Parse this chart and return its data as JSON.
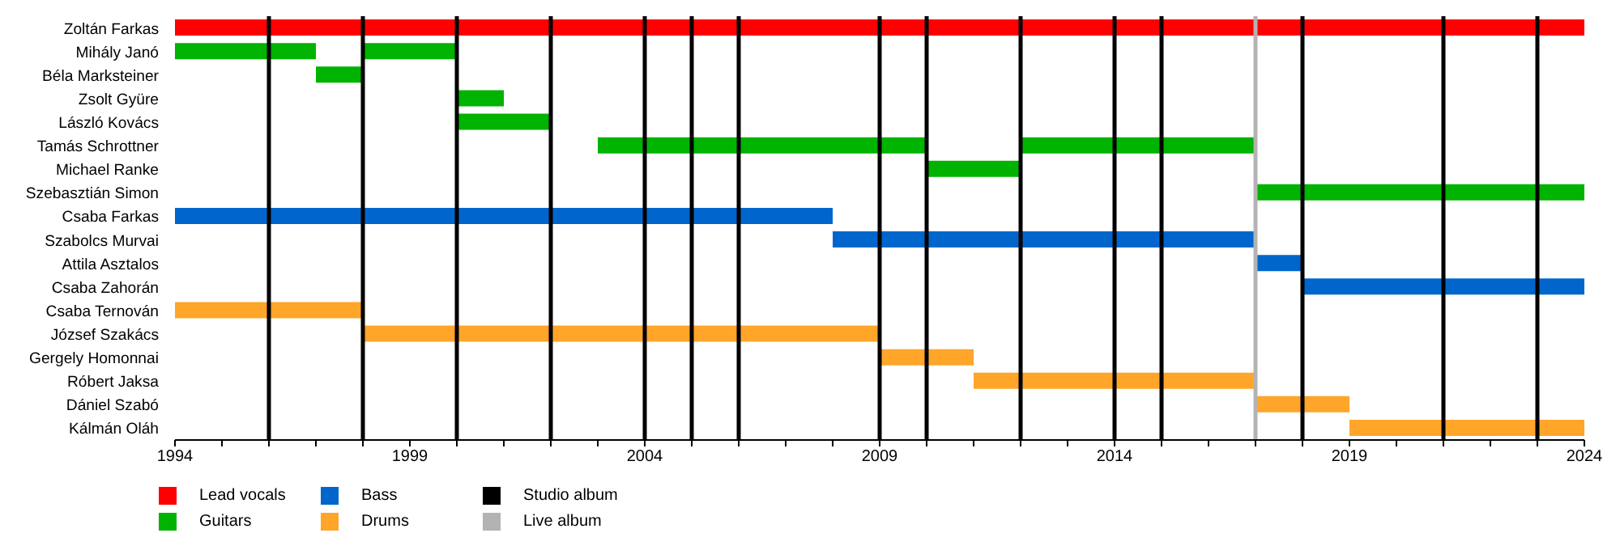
{
  "chart_data": {
    "type": "bar",
    "orientation": "horizontal",
    "categories": [
      "Zoltán Farkas",
      "Mihály Janó",
      "Béla Marksteiner",
      "Zsolt Gyüre",
      "László Kovács",
      "Tamás Schrottner",
      "Michael Ranke",
      "Szebasztián Simon",
      "Csaba Farkas",
      "Szabolcs Murvai",
      "Attila Asztalos",
      "Csaba Zahorán",
      "Csaba Ternován",
      "József Szakács",
      "Gergely Homonnai",
      "Róbert Jaksa",
      "Dániel Szabó",
      "Kálmán Oláh"
    ],
    "series": [
      {
        "name": "Lead vocals",
        "color": "#ff0000",
        "base": [
          1994,
          null,
          null,
          null,
          null,
          null,
          null,
          null,
          null,
          null,
          null,
          null,
          null,
          null,
          null,
          null,
          null,
          null
        ],
        "values": [
          30,
          null,
          null,
          null,
          null,
          null,
          null,
          null,
          null,
          null,
          null,
          null,
          null,
          null,
          null,
          null,
          null,
          null
        ]
      },
      {
        "name": "Guitars",
        "color": "#00b300",
        "base": [
          null,
          1994,
          1997,
          2000,
          2000,
          2003,
          2010,
          2017,
          null,
          null,
          null,
          null,
          null,
          null,
          null,
          null,
          null,
          null
        ],
        "values": [
          null,
          3,
          1,
          1,
          2,
          7,
          2,
          7,
          null,
          null,
          null,
          null,
          null,
          null,
          null,
          null,
          null,
          null
        ]
      },
      {
        "color": "#00b300",
        "base": [
          null,
          1998,
          null,
          null,
          null,
          2012,
          null,
          null,
          null,
          null,
          null,
          null,
          null,
          null,
          null,
          null,
          null,
          null
        ],
        "values": [
          null,
          2,
          null,
          null,
          null,
          5,
          null,
          null,
          null,
          null,
          null,
          null,
          null,
          null,
          null,
          null,
          null,
          null
        ]
      },
      {
        "name": "Bass",
        "color": "#0066cc",
        "base": [
          null,
          null,
          null,
          null,
          null,
          null,
          null,
          null,
          1994,
          2008,
          2017,
          2018,
          null,
          null,
          null,
          null,
          null,
          null
        ],
        "values": [
          null,
          null,
          null,
          null,
          null,
          null,
          null,
          null,
          14,
          9,
          1,
          6,
          null,
          null,
          null,
          null,
          null,
          null
        ]
      },
      {
        "name": "Drums",
        "color": "#ffa52a",
        "base": [
          null,
          null,
          null,
          null,
          null,
          null,
          null,
          null,
          null,
          null,
          null,
          null,
          1994,
          1998,
          2009,
          2011,
          2017,
          2019
        ],
        "values": [
          null,
          null,
          null,
          null,
          null,
          null,
          null,
          null,
          null,
          null,
          null,
          null,
          4,
          11,
          2,
          6,
          2,
          5
        ]
      }
    ],
    "xlim": [
      1994,
      2024
    ],
    "xticks": [
      1994,
      {
        "value": 1995,
        "label": null
      },
      {
        "value": 1996,
        "label": null
      },
      {
        "value": 1997,
        "label": null
      },
      {
        "value": 1998,
        "label": null
      },
      1999,
      {
        "value": 2000,
        "label": null
      },
      {
        "value": 2001,
        "label": null
      },
      {
        "value": 2002,
        "label": null
      },
      {
        "value": 2003,
        "label": null
      },
      2004,
      {
        "value": 2005,
        "label": null
      },
      {
        "value": 2006,
        "label": null
      },
      {
        "value": 2007,
        "label": null
      },
      {
        "value": 2008,
        "label": null
      },
      2009,
      {
        "value": 2010,
        "label": null
      },
      {
        "value": 2011,
        "label": null
      },
      {
        "value": 2012,
        "label": null
      },
      {
        "value": 2013,
        "label": null
      },
      2014,
      {
        "value": 2015,
        "label": null
      },
      {
        "value": 2016,
        "label": null
      },
      {
        "value": 2017,
        "label": null
      },
      {
        "value": 2018,
        "label": null
      },
      2019,
      {
        "value": 2020,
        "label": null
      },
      {
        "value": 2021,
        "label": null
      },
      {
        "value": 2022,
        "label": null
      },
      {
        "value": 2023,
        "label": null
      },
      2024
    ],
    "ref_lines": [
      {
        "axis": "x",
        "value": 1996,
        "label": "Studio album",
        "color": "#000000"
      },
      {
        "axis": "x",
        "value": 1998,
        "color": "#000000"
      },
      {
        "axis": "x",
        "value": 2000,
        "color": "#000000"
      },
      {
        "axis": "x",
        "value": 2002,
        "color": "#000000"
      },
      {
        "axis": "x",
        "value": 2004,
        "color": "#000000"
      },
      {
        "axis": "x",
        "value": 2005,
        "color": "#000000"
      },
      {
        "axis": "x",
        "value": 2006,
        "color": "#000000"
      },
      {
        "axis": "x",
        "value": 2009,
        "color": "#000000"
      },
      {
        "axis": "x",
        "value": 2010,
        "color": "#000000"
      },
      {
        "axis": "x",
        "value": 2012,
        "color": "#000000"
      },
      {
        "axis": "x",
        "value": 2014,
        "color": "#000000"
      },
      {
        "axis": "x",
        "value": 2015,
        "color": "#000000"
      },
      {
        "axis": "x",
        "value": 2017,
        "label": "Live album",
        "color": "#b3b3b3"
      },
      {
        "axis": "x",
        "value": 2018,
        "color": "#000000"
      },
      {
        "axis": "x",
        "value": 2021,
        "color": "#000000"
      },
      {
        "axis": "x",
        "value": 2023,
        "color": "#000000"
      }
    ],
    "legend": "bottom left"
  }
}
